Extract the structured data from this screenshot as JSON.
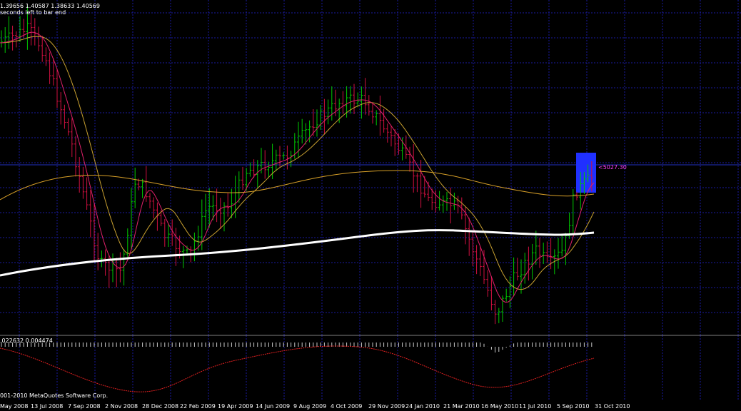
{
  "header": {
    "ohlc": "1.39656 1.40587 1.38633 1.40569",
    "timer": "seconds left to bar end"
  },
  "price_label": "<5027.30",
  "macd_panel": {
    "values": ".022632 0.004474"
  },
  "footer": {
    "copyright": "001-2010 MetaQuotes Software Corp."
  },
  "x_axis": {
    "labels": [
      "May 2008",
      "13 Jul 2008",
      "7 Sep 2008",
      "2 Nov 2008",
      "28 Dec 2008",
      "22 Feb 2009",
      "19 Apr 2009",
      "14 Jun 2009",
      "9 Aug 2009",
      "4 Oct 2009",
      "29 Nov 2009",
      "24 Jan 2010",
      "21 Mar 2010",
      "16 May 2010",
      "11 Jul 2010",
      "5 Sep 2010",
      "31 Oct 2010"
    ]
  },
  "colors": {
    "background": "#000000",
    "grid": "#1a1aa0",
    "bull_candle": "#00c800",
    "bear_candle": "#d01040",
    "ma_fast": "#e0206a",
    "ma_mid": "#c8a030",
    "ma_slow": "#d8a028",
    "ma_long": "#ffffff",
    "signal": "#e02020",
    "highlight": "#2030ff",
    "price_line": "#2030c0",
    "price_tag": "#ff40ff"
  }
}
